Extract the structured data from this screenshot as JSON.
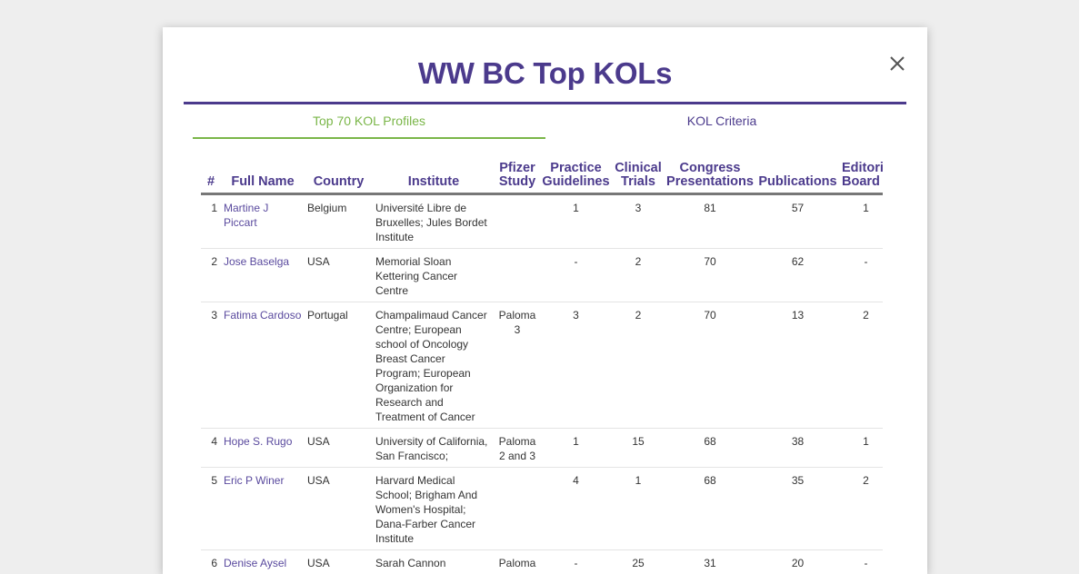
{
  "modal": {
    "title": "WW BC Top KOLs",
    "close_symbol": "close-icon"
  },
  "tabs": [
    {
      "label": "Top 70 KOL Profiles",
      "active": true
    },
    {
      "label": "KOL Criteria",
      "active": false
    }
  ],
  "table": {
    "headers": {
      "idx": "#",
      "name": "Full Name",
      "country": "Country",
      "institute": "Institute",
      "pfizer": [
        "Pfizer",
        "Study"
      ],
      "practice": [
        "Practice",
        "Guidelines"
      ],
      "clinical": [
        "Clinical",
        "Trials"
      ],
      "congress": [
        "Congress",
        "Presentations"
      ],
      "publications": "Publications",
      "editorial": [
        "Editorial",
        "Board"
      ]
    },
    "rows": [
      {
        "idx": "1",
        "name": "Martine J Piccart",
        "country": "Belgium",
        "institute": "Université Libre de Bruxelles; Jules Bordet Institute",
        "pfizer": "",
        "practice": "1",
        "clinical": "3",
        "congress": "81",
        "publications": "57",
        "editorial": "1"
      },
      {
        "idx": "2",
        "name": "Jose Baselga",
        "country": "USA",
        "institute": "Memorial Sloan Kettering Cancer Centre",
        "pfizer": "",
        "practice": "-",
        "clinical": "2",
        "congress": "70",
        "publications": "62",
        "editorial": "-"
      },
      {
        "idx": "3",
        "name": "Fatima Cardoso",
        "country": "Portugal",
        "institute": "Champalimaud Cancer Centre; European school of Oncology Breast Cancer Program; European Organization for Research and Treatment of Cancer",
        "pfizer": "Paloma 3",
        "practice": "3",
        "clinical": "2",
        "congress": "70",
        "publications": "13",
        "editorial": "2"
      },
      {
        "idx": "4",
        "name": "Hope S. Rugo",
        "country": "USA",
        "institute": "University of California, San Francisco;",
        "pfizer": "Paloma 2 and 3",
        "practice": "1",
        "clinical": "15",
        "congress": "68",
        "publications": "38",
        "editorial": "1"
      },
      {
        "idx": "5",
        "name": "Eric P Winer",
        "country": "USA",
        "institute": "Harvard Medical School; Brigham And Women's Hospital; Dana-Farber Cancer Institute",
        "pfizer": "",
        "practice": "4",
        "clinical": "1",
        "congress": "68",
        "publications": "35",
        "editorial": "2"
      },
      {
        "idx": "6",
        "name": "Denise Aysel",
        "country": "USA",
        "institute": "Sarah Cannon",
        "pfizer": "Paloma",
        "practice": "-",
        "clinical": "25",
        "congress": "31",
        "publications": "20",
        "editorial": "-"
      }
    ]
  },
  "colors": {
    "accent_purple": "#4b3a8c",
    "active_tab_green": "#7ab648"
  }
}
